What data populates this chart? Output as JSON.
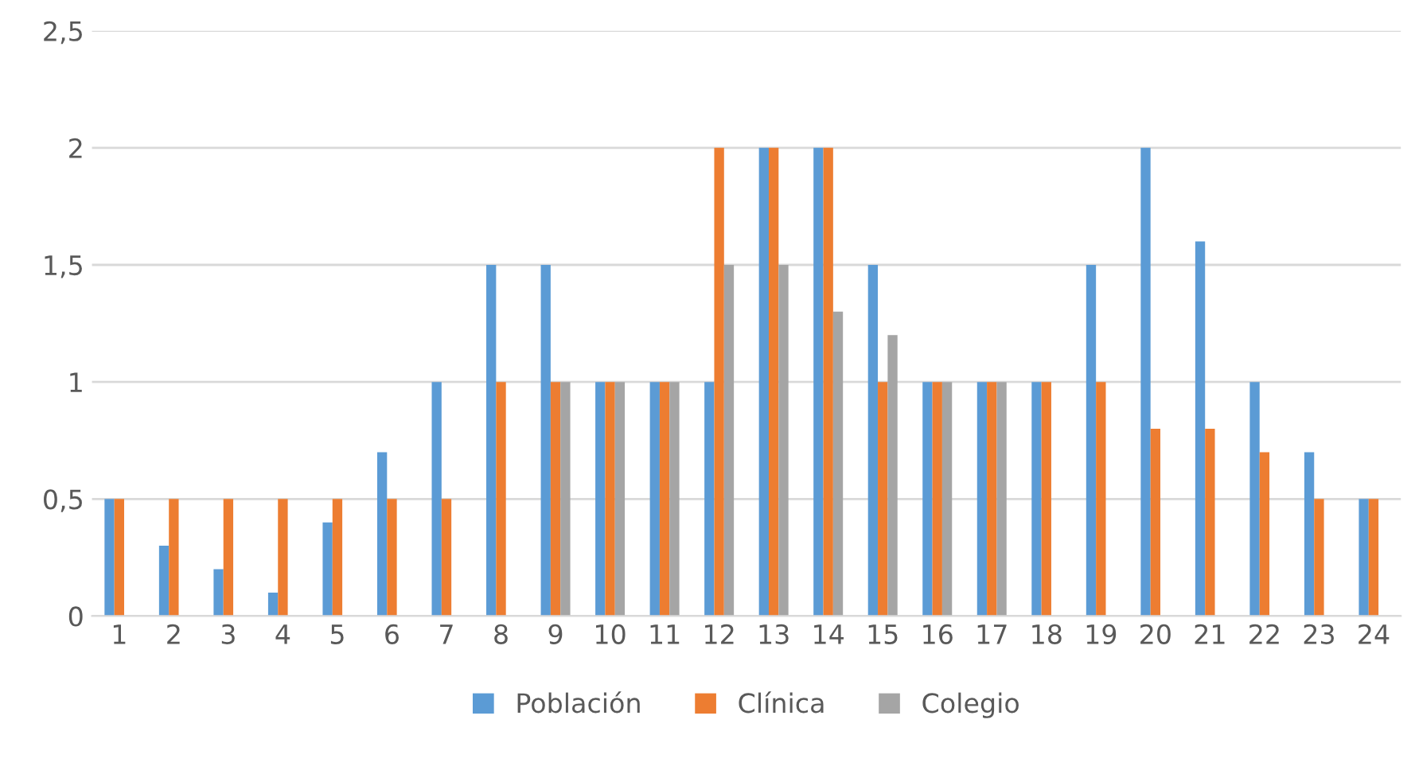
{
  "chart_data": {
    "type": "bar",
    "categories": [
      "1",
      "2",
      "3",
      "4",
      "5",
      "6",
      "7",
      "8",
      "9",
      "10",
      "11",
      "12",
      "13",
      "14",
      "15",
      "16",
      "17",
      "18",
      "19",
      "20",
      "21",
      "22",
      "23",
      "24"
    ],
    "series": [
      {
        "name": "Población",
        "color": "#5b9bd5",
        "values": [
          0.5,
          0.3,
          0.2,
          0.1,
          0.4,
          0.7,
          1,
          1.5,
          1.5,
          1,
          1,
          1,
          2,
          2,
          1.5,
          1,
          1,
          1,
          1.5,
          2,
          1.6,
          1,
          0.7,
          0.5
        ]
      },
      {
        "name": "Clínica",
        "color": "#ed7d31",
        "values": [
          0.5,
          0.5,
          0.5,
          0.5,
          0.5,
          0.5,
          0.5,
          1,
          1,
          1,
          1,
          2,
          2,
          2,
          1,
          1,
          1,
          1,
          1,
          0.8,
          0.8,
          0.7,
          0.5,
          0.5
        ]
      },
      {
        "name": "Colegio",
        "color": "#a5a5a5",
        "values": [
          null,
          null,
          null,
          null,
          null,
          null,
          null,
          null,
          1,
          1,
          1,
          1.5,
          1.5,
          1.3,
          1.2,
          1,
          1,
          null,
          null,
          null,
          null,
          null,
          null,
          null
        ]
      }
    ],
    "ylim": [
      0,
      2.5
    ],
    "yticks": [
      {
        "value": 0,
        "label": "0"
      },
      {
        "value": 0.5,
        "label": "0,5"
      },
      {
        "value": 1,
        "label": "1"
      },
      {
        "value": 1.5,
        "label": "1,5"
      },
      {
        "value": 2,
        "label": "2"
      },
      {
        "value": 2.5,
        "label": "2,5"
      }
    ],
    "grid": "y",
    "legend": "bottom"
  }
}
